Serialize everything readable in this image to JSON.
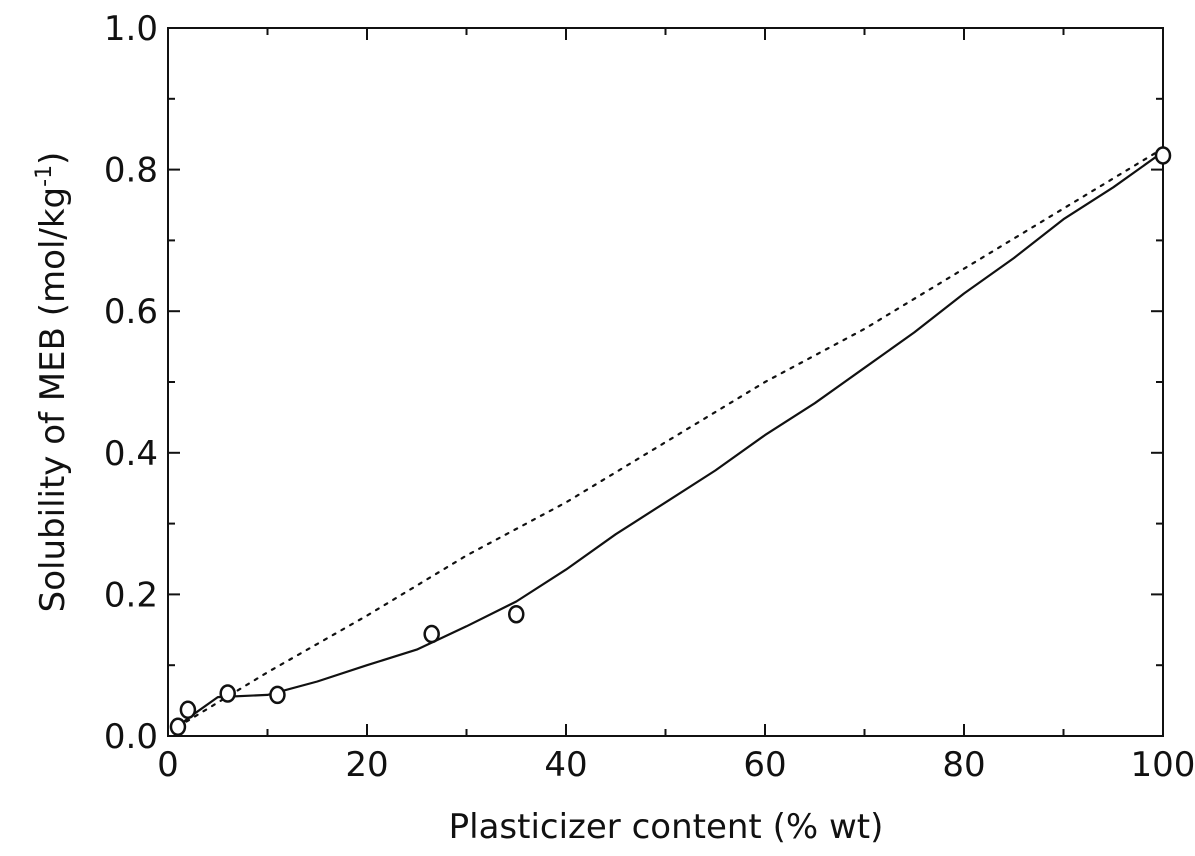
{
  "chart_data": {
    "type": "scatter",
    "title": "",
    "xlabel": "Plasticizer content (% wt)",
    "ylabel_main": "Solubility of MEB (mol/kg",
    "ylabel_sup": "-1",
    "ylabel_close": ")",
    "xlim": [
      0,
      100
    ],
    "ylim": [
      0,
      1.0
    ],
    "x_ticks": [
      0,
      20,
      40,
      60,
      80,
      100
    ],
    "x_tick_labels": [
      "0",
      "20",
      "40",
      "60",
      "80",
      "100"
    ],
    "y_ticks": [
      0.0,
      0.2,
      0.4,
      0.6,
      0.8,
      1.0
    ],
    "y_tick_labels": [
      "0.0",
      "0.2",
      "0.4",
      "0.6",
      "0.8",
      "1.0"
    ],
    "x_minor_step": 10,
    "y_minor_step": 0.1,
    "grid": false,
    "legend": "none",
    "series": [
      {
        "style": "markers",
        "marker": "open-circle",
        "x": [
          1,
          2,
          6,
          11,
          26.5,
          35,
          100
        ],
        "y": [
          0.013,
          0.037,
          0.06,
          0.058,
          0.144,
          0.172,
          0.82
        ]
      },
      {
        "style": "solid-line",
        "x": [
          1,
          2,
          5,
          10,
          15,
          20,
          25,
          30,
          35,
          40,
          45,
          50,
          55,
          60,
          65,
          70,
          75,
          80,
          85,
          90,
          95,
          100
        ],
        "y": [
          0.013,
          0.025,
          0.055,
          0.058,
          0.077,
          0.1,
          0.122,
          0.155,
          0.19,
          0.235,
          0.285,
          0.33,
          0.375,
          0.425,
          0.47,
          0.52,
          0.57,
          0.625,
          0.675,
          0.73,
          0.775,
          0.825
        ]
      },
      {
        "style": "dotted-line",
        "x": [
          1,
          10,
          20,
          30,
          40,
          50,
          60,
          70,
          80,
          90,
          100
        ],
        "y": [
          0.013,
          0.09,
          0.17,
          0.255,
          0.33,
          0.415,
          0.5,
          0.575,
          0.66,
          0.745,
          0.83
        ]
      }
    ],
    "colors": {
      "ink": "#111111",
      "background": "#ffffff"
    }
  }
}
